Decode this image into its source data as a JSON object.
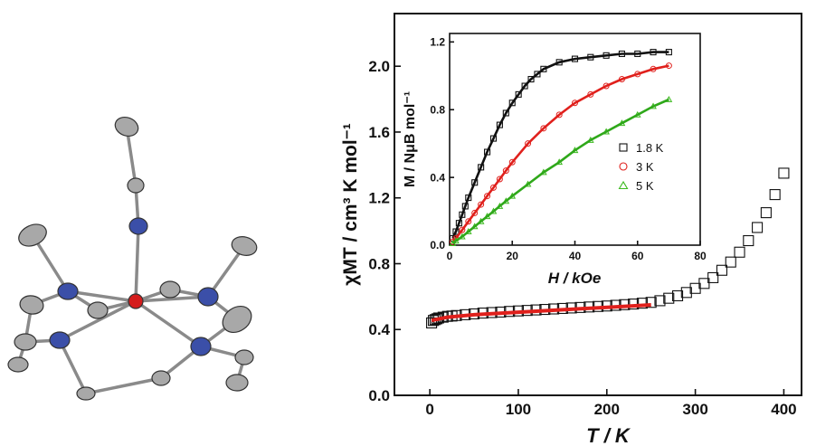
{
  "figure": {
    "molecule": {
      "atoms": [
        {
          "element": "C",
          "color": "#a8a8a8"
        },
        {
          "element": "N",
          "color": "#3b4fa8"
        },
        {
          "element": "Co",
          "color": "#d41c1c"
        }
      ]
    }
  },
  "chart_data": [
    {
      "type": "scatter",
      "title": "",
      "xlabel": "T / K",
      "ylabel": "χMT / cm³ K mol⁻¹",
      "xlim": [
        -40,
        420
      ],
      "ylim": [
        0.0,
        2.32
      ],
      "xticks": [
        0,
        100,
        200,
        300,
        400
      ],
      "yticks": [
        0.0,
        0.4,
        0.8,
        1.2,
        1.6,
        2.0
      ],
      "xtick_labels": [
        "0",
        "100",
        "200",
        "300",
        "400"
      ],
      "ytick_labels": [
        "0.0",
        "0.4",
        "0.8",
        "1.2",
        "1.6",
        "2.0"
      ],
      "grid": false,
      "series": [
        {
          "marker": "square-open",
          "color": "#111111",
          "x": [
            2,
            4,
            6,
            8,
            10,
            15,
            20,
            25,
            30,
            40,
            50,
            60,
            70,
            80,
            90,
            100,
            110,
            120,
            130,
            140,
            150,
            160,
            170,
            180,
            190,
            200,
            210,
            220,
            230,
            240,
            250,
            260,
            270,
            280,
            290,
            300,
            310,
            320,
            330,
            340,
            350,
            360,
            370,
            380,
            390,
            400
          ],
          "y": [
            0.44,
            0.455,
            0.46,
            0.465,
            0.47,
            0.475,
            0.48,
            0.482,
            0.485,
            0.49,
            0.495,
            0.5,
            0.503,
            0.506,
            0.51,
            0.513,
            0.516,
            0.519,
            0.522,
            0.525,
            0.528,
            0.531,
            0.534,
            0.537,
            0.54,
            0.543,
            0.547,
            0.551,
            0.555,
            0.56,
            0.565,
            0.575,
            0.59,
            0.605,
            0.625,
            0.65,
            0.68,
            0.715,
            0.76,
            0.81,
            0.87,
            0.94,
            1.02,
            1.11,
            1.22,
            1.35
          ]
        },
        {
          "type": "line",
          "color": "#e0201c",
          "x": [
            2,
            20,
            50,
            100,
            150,
            200,
            250
          ],
          "y": [
            0.455,
            0.475,
            0.49,
            0.505,
            0.52,
            0.535,
            0.55
          ]
        }
      ]
    },
    {
      "type": "scatter",
      "title": "",
      "xlabel": "H / kOe",
      "ylabel": "M / NμB mol⁻¹",
      "xlim": [
        0,
        80
      ],
      "ylim": [
        0.0,
        1.25
      ],
      "xticks": [
        0,
        20,
        40,
        60,
        80
      ],
      "yticks": [
        0.0,
        0.4,
        0.8,
        1.2
      ],
      "xtick_labels": [
        "0",
        "20",
        "40",
        "60",
        "80"
      ],
      "ytick_labels": [
        "0.0",
        "0.4",
        "0.8",
        "1.2"
      ],
      "grid": false,
      "legend_position": "right",
      "series": [
        {
          "name": "1.8 K",
          "marker": "square-open",
          "color": "#111111",
          "x": [
            1,
            2,
            3,
            4,
            5,
            6,
            8,
            10,
            12,
            14,
            16,
            18,
            20,
            22,
            24,
            26,
            28,
            30,
            35,
            40,
            45,
            50,
            55,
            60,
            65,
            70
          ],
          "y": [
            0.04,
            0.08,
            0.13,
            0.18,
            0.23,
            0.28,
            0.37,
            0.46,
            0.55,
            0.63,
            0.71,
            0.78,
            0.84,
            0.89,
            0.94,
            0.98,
            1.01,
            1.04,
            1.08,
            1.1,
            1.11,
            1.12,
            1.13,
            1.13,
            1.14,
            1.14
          ]
        },
        {
          "name": "3 K",
          "marker": "circle-open",
          "color": "#e0201c",
          "x": [
            1,
            2,
            4,
            6,
            8,
            10,
            12,
            14,
            16,
            18,
            20,
            25,
            30,
            35,
            40,
            45,
            50,
            55,
            60,
            65,
            70
          ],
          "y": [
            0.02,
            0.04,
            0.09,
            0.14,
            0.19,
            0.24,
            0.29,
            0.34,
            0.39,
            0.44,
            0.49,
            0.6,
            0.69,
            0.77,
            0.84,
            0.89,
            0.94,
            0.98,
            1.01,
            1.04,
            1.06
          ]
        },
        {
          "name": "5 K",
          "marker": "triangle-open",
          "color": "#3cba1e",
          "x": [
            1,
            2,
            4,
            6,
            8,
            10,
            12,
            14,
            16,
            18,
            20,
            25,
            30,
            35,
            40,
            45,
            50,
            55,
            60,
            65,
            70
          ],
          "y": [
            0.01,
            0.025,
            0.05,
            0.08,
            0.11,
            0.14,
            0.17,
            0.2,
            0.23,
            0.26,
            0.29,
            0.36,
            0.43,
            0.49,
            0.56,
            0.62,
            0.67,
            0.72,
            0.77,
            0.82,
            0.86
          ]
        }
      ]
    }
  ]
}
